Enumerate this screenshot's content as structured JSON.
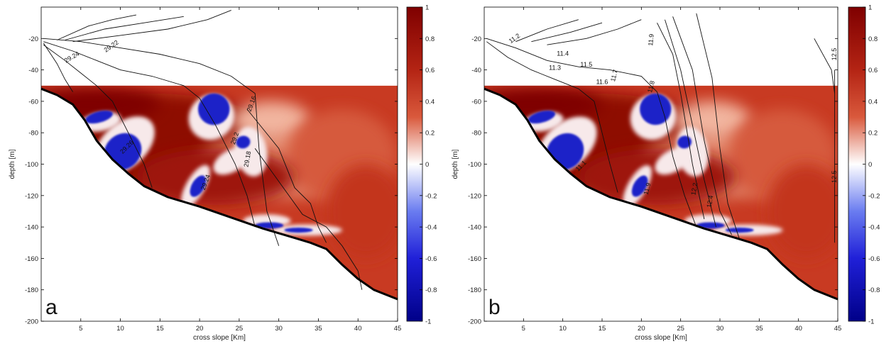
{
  "chart_data": [
    {
      "type": "heatmap",
      "panel_label": "a",
      "xlabel": "cross slope [Km]",
      "ylabel": "depth [m]",
      "xlim": [
        0,
        45
      ],
      "ylim": [
        -200,
        0
      ],
      "xticks": [
        5,
        10,
        15,
        20,
        25,
        30,
        35,
        40,
        45
      ],
      "yticks": [
        -20,
        -40,
        -60,
        -80,
        -100,
        -120,
        -140,
        -160,
        -180,
        -200
      ],
      "heatmap_top_depth": -50,
      "colorbar": {
        "min": -1,
        "max": 1,
        "ticks": [
          1,
          0.8,
          0.6,
          0.4,
          0.2,
          0,
          -0.2,
          -0.4,
          -0.6,
          -0.8,
          -1
        ]
      },
      "colors": {
        "high": "#8b0000",
        "mid": "#ffffff",
        "low": "#00008b"
      },
      "bottom_profile": [
        [
          0,
          -52
        ],
        [
          2,
          -56
        ],
        [
          4,
          -62
        ],
        [
          5.5,
          -72
        ],
        [
          7,
          -85
        ],
        [
          9,
          -97
        ],
        [
          11,
          -106
        ],
        [
          13,
          -114
        ],
        [
          16,
          -121
        ],
        [
          20,
          -127
        ],
        [
          24,
          -134
        ],
        [
          28,
          -141
        ],
        [
          32,
          -147
        ],
        [
          34,
          -150
        ],
        [
          36,
          -154
        ],
        [
          38,
          -164
        ],
        [
          40,
          -173
        ],
        [
          42,
          -180
        ],
        [
          45,
          -186
        ]
      ],
      "contour_labels": [
        "29.24",
        "29.22",
        "29.16",
        "29.2",
        "29.18",
        "29.26",
        "29.24"
      ]
    },
    {
      "type": "heatmap",
      "panel_label": "b",
      "xlabel": "cross slope [Km]",
      "ylabel": "depth [m]",
      "xlim": [
        0,
        45
      ],
      "ylim": [
        -200,
        0
      ],
      "xticks": [
        5,
        10,
        15,
        20,
        25,
        30,
        35,
        40,
        45
      ],
      "yticks": [
        -20,
        -40,
        -60,
        -80,
        -100,
        -120,
        -140,
        -160,
        -180,
        -200
      ],
      "heatmap_top_depth": -50,
      "colorbar": {
        "min": -1,
        "max": 1,
        "ticks": [
          1,
          0.8,
          0.6,
          0.4,
          0.2,
          0,
          -0.2,
          -0.4,
          -0.6,
          -0.8,
          -1
        ]
      },
      "colors": {
        "high": "#8b0000",
        "mid": "#ffffff",
        "low": "#00008b"
      },
      "bottom_profile": [
        [
          0,
          -52
        ],
        [
          2,
          -56
        ],
        [
          4,
          -62
        ],
        [
          5.5,
          -72
        ],
        [
          7,
          -85
        ],
        [
          9,
          -97
        ],
        [
          11,
          -106
        ],
        [
          13,
          -114
        ],
        [
          16,
          -121
        ],
        [
          20,
          -127
        ],
        [
          24,
          -134
        ],
        [
          28,
          -141
        ],
        [
          32,
          -147
        ],
        [
          34,
          -150
        ],
        [
          36,
          -154
        ],
        [
          38,
          -164
        ],
        [
          40,
          -173
        ],
        [
          42,
          -180
        ],
        [
          45,
          -186
        ]
      ],
      "contour_labels": [
        "11.2",
        "11.3",
        "11.4",
        "11.5",
        "11.6",
        "11.7",
        "11.8",
        "11.9",
        "12.5",
        "11.1",
        "11.9",
        "12.2",
        "12.4",
        "12.5"
      ]
    }
  ]
}
